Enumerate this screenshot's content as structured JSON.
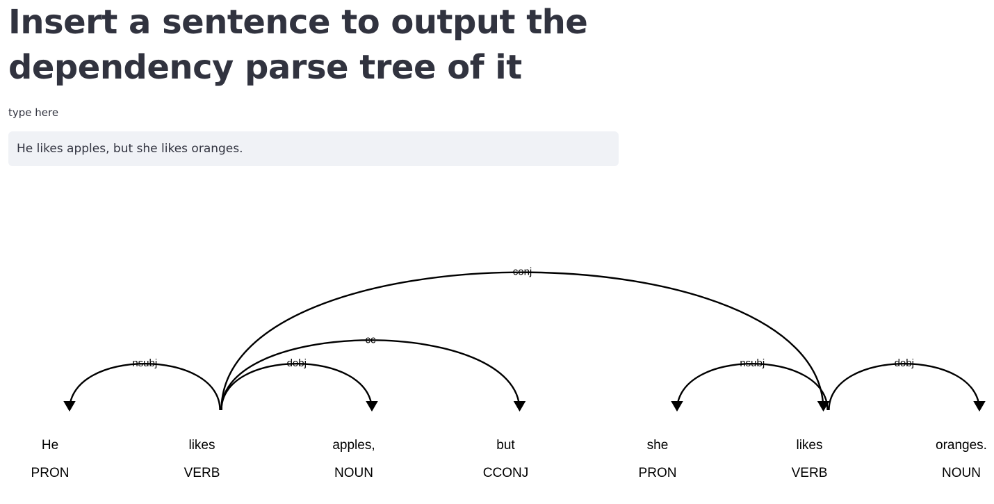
{
  "page": {
    "title": "Insert a sentence to output the dependency parse tree of it",
    "input_label": "type here",
    "input_value": "He likes apples, but she likes oranges."
  },
  "colors": {
    "text": "#31333f",
    "input_bg": "#f0f2f6",
    "tree": "#000000"
  },
  "tree": {
    "tokens": [
      {
        "text": "He",
        "tag": "PRON"
      },
      {
        "text": "likes",
        "tag": "VERB"
      },
      {
        "text": "apples,",
        "tag": "NOUN"
      },
      {
        "text": "but",
        "tag": "CCONJ"
      },
      {
        "text": "she",
        "tag": "PRON"
      },
      {
        "text": "likes",
        "tag": "VERB"
      },
      {
        "text": "oranges.",
        "tag": "NOUN"
      }
    ],
    "arcs": [
      {
        "start": 0,
        "end": 1,
        "label": "nsubj",
        "dir": "left"
      },
      {
        "start": 1,
        "end": 2,
        "label": "dobj",
        "dir": "right"
      },
      {
        "start": 1,
        "end": 3,
        "label": "cc",
        "dir": "right"
      },
      {
        "start": 1,
        "end": 5,
        "label": "conj",
        "dir": "right"
      },
      {
        "start": 4,
        "end": 5,
        "label": "nsubj",
        "dir": "left"
      },
      {
        "start": 5,
        "end": 6,
        "label": "dobj",
        "dir": "right"
      }
    ]
  }
}
